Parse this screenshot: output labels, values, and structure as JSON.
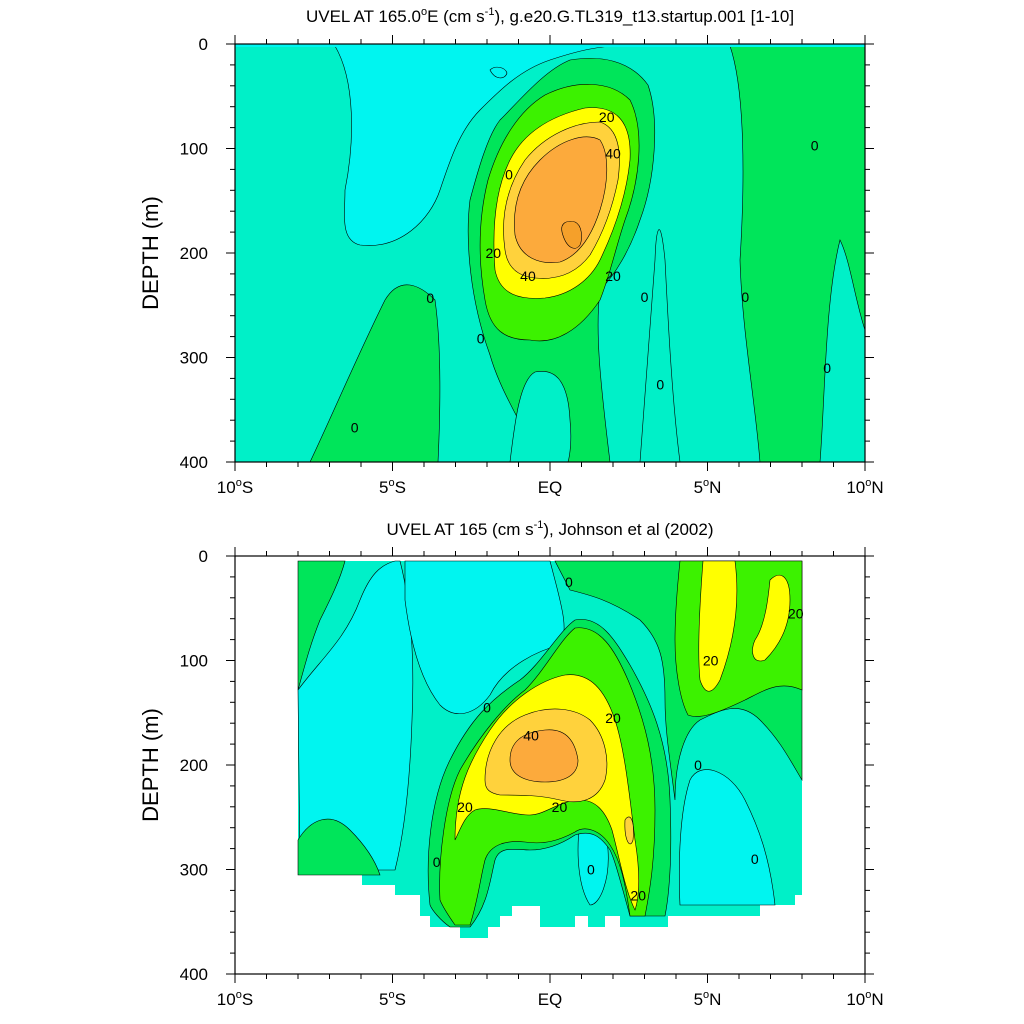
{
  "chart_data": [
    {
      "type": "contour",
      "title_prefix": "UVEL AT 165.0",
      "title_sup1": "o",
      "title_mid": "E (cm s",
      "title_sup2": "-1",
      "title_suffix": "), g.e20.G.TL319_t13.startup.001 [1-10]",
      "ylabel": "DEPTH (m)",
      "xlim": [
        -10,
        10
      ],
      "ylim": [
        0,
        400
      ],
      "y_reversed": true,
      "x_ticks": [
        {
          "value": -10,
          "num": "10",
          "sup": "o",
          "hemi": "S"
        },
        {
          "value": -5,
          "num": "5",
          "sup": "o",
          "hemi": "S"
        },
        {
          "value": 0,
          "num": "EQ",
          "sup": "",
          "hemi": ""
        },
        {
          "value": 5,
          "num": "5",
          "sup": "o",
          "hemi": "N"
        },
        {
          "value": 10,
          "num": "10",
          "sup": "o",
          "hemi": "N"
        }
      ],
      "y_ticks": [
        0,
        100,
        200,
        300,
        400
      ],
      "contour_levels": [
        -10,
        0,
        10,
        20,
        30,
        40,
        50
      ],
      "colors": {
        "below_-10": "#00f5f0",
        "-10_to_0": "#00f0c8",
        "0_to_10": "#00e55a",
        "10_to_20": "#3cf200",
        "20_to_30": "#ffff00",
        "30_to_40": "#ffd23c",
        "above_40": "#fcaa3c"
      },
      "labels": [
        {
          "text": "20",
          "lon": 1.8,
          "depth": 70
        },
        {
          "text": "40",
          "lon": 2.0,
          "depth": 105
        },
        {
          "text": "0",
          "lon": -1.3,
          "depth": 125
        },
        {
          "text": "20",
          "lon": -1.8,
          "depth": 200
        },
        {
          "text": "40",
          "lon": -0.7,
          "depth": 222
        },
        {
          "text": "20",
          "lon": 2.0,
          "depth": 222
        },
        {
          "text": "0",
          "lon": -3.8,
          "depth": 243
        },
        {
          "text": "0",
          "lon": 3.0,
          "depth": 242
        },
        {
          "text": "0",
          "lon": 6.2,
          "depth": 242
        },
        {
          "text": "0",
          "lon": 8.4,
          "depth": 97
        },
        {
          "text": "0",
          "lon": -2.2,
          "depth": 282
        },
        {
          "text": "0",
          "lon": 3.5,
          "depth": 326
        },
        {
          "text": "0",
          "lon": 8.8,
          "depth": 310
        },
        {
          "text": "0",
          "lon": -6.2,
          "depth": 367
        }
      ]
    },
    {
      "type": "contour",
      "title_prefix": "UVEL AT 165 (cm s",
      "title_sup": "-1",
      "title_suffix": "), Johnson et al (2002)",
      "ylabel": "DEPTH (m)",
      "xlim": [
        -10,
        10
      ],
      "ylim": [
        0,
        400
      ],
      "y_reversed": true,
      "x_ticks": [
        {
          "value": -10,
          "num": "10",
          "sup": "o",
          "hemi": "S"
        },
        {
          "value": -5,
          "num": "5",
          "sup": "o",
          "hemi": "S"
        },
        {
          "value": 0,
          "num": "EQ",
          "sup": "",
          "hemi": ""
        },
        {
          "value": 5,
          "num": "5",
          "sup": "o",
          "hemi": "N"
        },
        {
          "value": 10,
          "num": "10",
          "sup": "o",
          "hemi": "N"
        }
      ],
      "y_ticks": [
        0,
        100,
        200,
        300,
        400
      ],
      "contour_levels": [
        -10,
        0,
        10,
        20,
        30,
        40
      ],
      "colors": {
        "below_-10": "#00f5f0",
        "-10_to_0": "#00f0c8",
        "0_to_10": "#00e55a",
        "10_to_20": "#3cf200",
        "20_to_30": "#ffff00",
        "30_to_40": "#ffd23c",
        "above_40": "#fcaa3c"
      },
      "labels": [
        {
          "text": "0",
          "lon": 0.6,
          "depth": 25
        },
        {
          "text": "20",
          "lon": 7.8,
          "depth": 55
        },
        {
          "text": "20",
          "lon": 5.1,
          "depth": 100
        },
        {
          "text": "0",
          "lon": -2.0,
          "depth": 145
        },
        {
          "text": "20",
          "lon": 2.0,
          "depth": 155
        },
        {
          "text": "40",
          "lon": -0.6,
          "depth": 172
        },
        {
          "text": "0",
          "lon": 4.7,
          "depth": 200
        },
        {
          "text": "20",
          "lon": -2.7,
          "depth": 240
        },
        {
          "text": "20",
          "lon": 0.3,
          "depth": 240
        },
        {
          "text": "0",
          "lon": -3.6,
          "depth": 293
        },
        {
          "text": "0",
          "lon": 1.3,
          "depth": 300
        },
        {
          "text": "0",
          "lon": 6.5,
          "depth": 290
        },
        {
          "text": "20",
          "lon": 2.8,
          "depth": 325
        }
      ]
    }
  ]
}
